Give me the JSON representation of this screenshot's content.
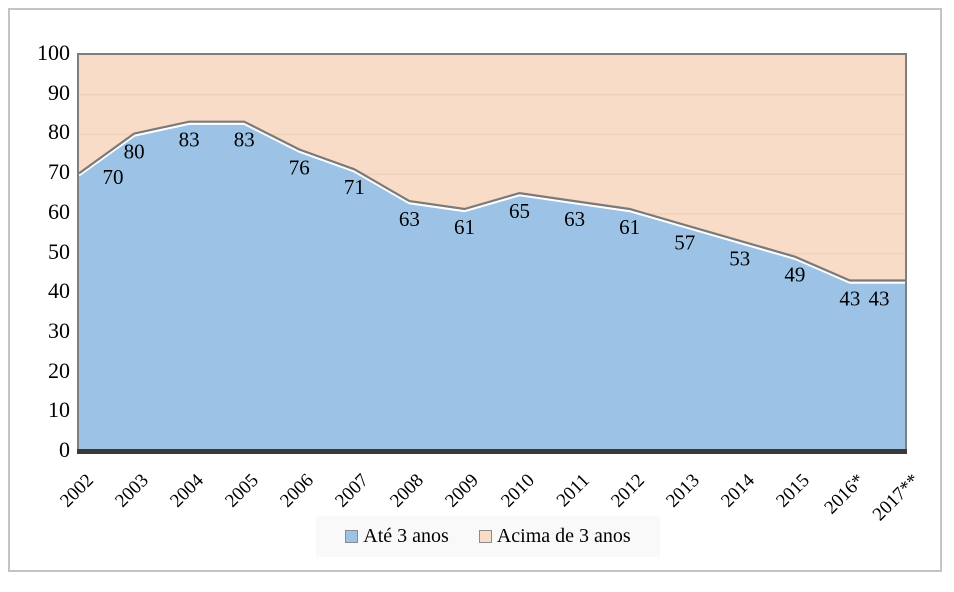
{
  "chart_data": {
    "type": "area",
    "subtype": "stacked-100",
    "title": "",
    "xlabel": "",
    "ylabel": "",
    "categories": [
      "2002",
      "2003",
      "2004",
      "2005",
      "2006",
      "2007",
      "2008",
      "2009",
      "2010",
      "2011",
      "2012",
      "2013",
      "2014",
      "2015",
      "2016*",
      "2017**"
    ],
    "series": [
      {
        "name": "Até 3 anos",
        "color": "#9cc3e6",
        "values": [
          70,
          80,
          83,
          83,
          76,
          71,
          63,
          61,
          65,
          63,
          61,
          57,
          53,
          49,
          43,
          43
        ],
        "labels_shown": true
      },
      {
        "name": "Acima de 3 anos",
        "color": "#f9dcc7",
        "values": [
          30,
          20,
          17,
          17,
          24,
          29,
          37,
          39,
          35,
          37,
          39,
          43,
          47,
          51,
          57,
          57
        ],
        "labels_shown": false
      }
    ],
    "ylim": [
      0,
      100
    ],
    "ytick_step": 10,
    "yticks": [
      0,
      10,
      20,
      30,
      40,
      50,
      60,
      70,
      80,
      90,
      100
    ],
    "grid": true,
    "legend_position": "bottom"
  },
  "legend": {
    "items": [
      {
        "label": "Até 3 anos",
        "color": "#9cc3e6"
      },
      {
        "label": "Acima de 3 anos",
        "color": "#f9dcc7"
      }
    ]
  },
  "colors": {
    "area_blue": "#9cc3e6",
    "area_peach": "#f9dcc7",
    "gridline_on_peach": "#f1d1ba",
    "boundary_line": "#7a7a7a",
    "boundary_underline": "#ffffff",
    "x_axis_line": "#3a3a3a",
    "plot_border": "#7f7f7f",
    "outer_border": "#c3c3c3",
    "data_label": "#000000"
  }
}
